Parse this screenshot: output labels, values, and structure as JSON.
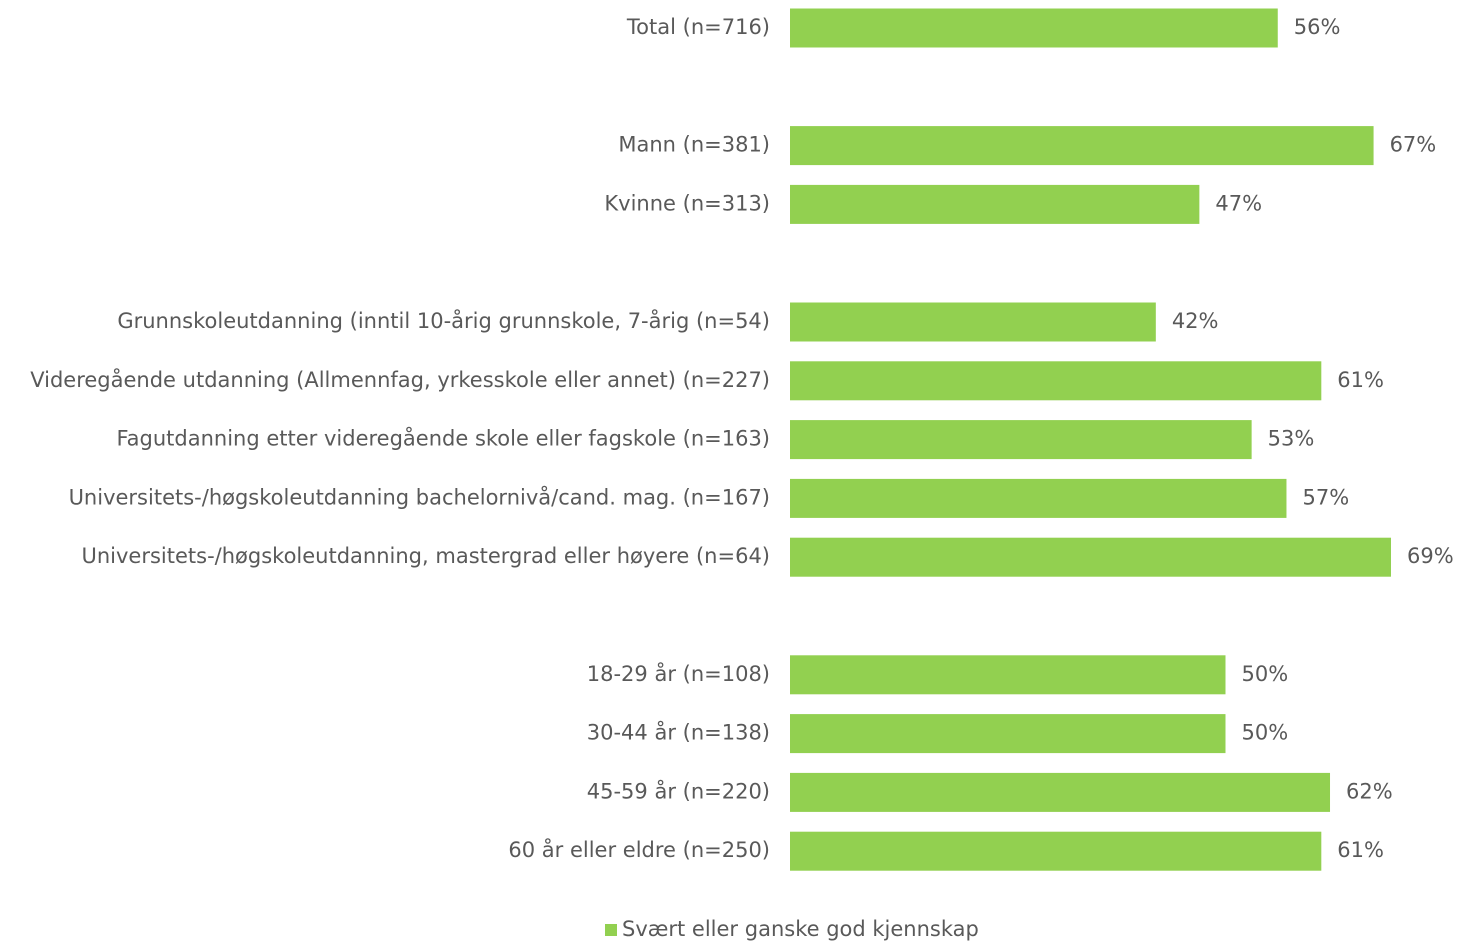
{
  "chart_data": {
    "type": "bar",
    "orientation": "horizontal",
    "categories": [
      "Total (n=716)",
      null,
      "Mann (n=381)",
      "Kvinne (n=313)",
      null,
      "Grunnskoleutdanning (inntil 10-årig grunnskole, 7-årig (n=54)",
      "Videregående utdanning (Allmennfag, yrkesskole eller annet) (n=227)",
      "Fagutdanning etter videregående skole eller fagskole (n=163)",
      "Universitets-/høgskoleutdanning bachelornivå/cand. mag. (n=167)",
      "Universitets-/høgskoleutdanning,  mastergrad eller høyere (n=64)",
      null,
      "18-29 år (n=108)",
      "30-44 år (n=138)",
      "45-59 år (n=220)",
      "60 år eller eldre (n=250)"
    ],
    "series": [
      {
        "name": "Svært eller ganske god kjennskap",
        "color": "#92d050",
        "values": [
          56,
          null,
          67,
          47,
          null,
          42,
          61,
          53,
          57,
          69,
          null,
          50,
          50,
          62,
          61
        ],
        "value_labels": [
          "56%",
          null,
          "67%",
          "47%",
          null,
          "42%",
          "61%",
          "53%",
          "57%",
          "69%",
          null,
          "50%",
          "50%",
          "62%",
          "61%"
        ]
      }
    ],
    "legend": "bottom"
  }
}
